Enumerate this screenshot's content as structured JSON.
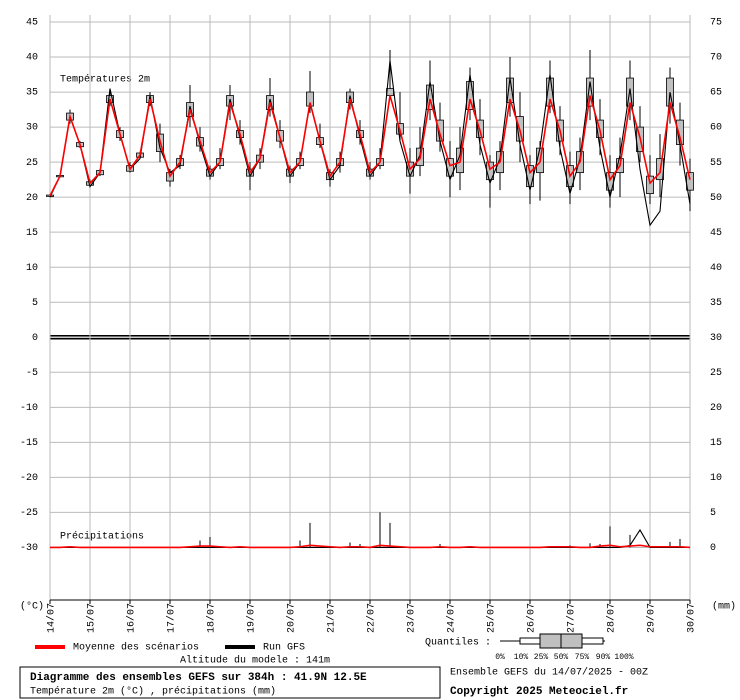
{
  "chart_data": {
    "type": "ensemble",
    "title": "Diagramme des ensembles GEFS sur 384h : 41.9N 12.5E",
    "subtitle": "Température 2m (°C) , précipitations (mm)",
    "source": "Ensemble GEFS du 14/07/2025 - 00Z",
    "copyright": "Copyright 2025 Meteociel.fr",
    "altitude": "Altitude du modele : 141m",
    "panel_labels": [
      "Températures 2m",
      "Précipitations"
    ],
    "ylabel": "(°C)",
    "y2label": "(mm)",
    "quantiles_label": "Quantiles :",
    "quantile_labels": [
      "0%",
      "10%",
      "25%",
      "50%",
      "75%",
      "90%",
      "100%"
    ],
    "grid": true,
    "xlim": [
      0,
      384
    ],
    "xticks": [
      {
        "value": 0,
        "label": "14/07"
      },
      {
        "value": 24,
        "label": "15/07"
      },
      {
        "value": 48,
        "label": "16/07"
      },
      {
        "value": 72,
        "label": "17/07"
      },
      {
        "value": 96,
        "label": "18/07"
      },
      {
        "value": 120,
        "label": "19/07"
      },
      {
        "value": 144,
        "label": "20/07"
      },
      {
        "value": 168,
        "label": "21/07"
      },
      {
        "value": 192,
        "label": "22/07"
      },
      {
        "value": 216,
        "label": "23/07"
      },
      {
        "value": 240,
        "label": "24/07"
      },
      {
        "value": 264,
        "label": "25/07"
      },
      {
        "value": 288,
        "label": "26/07"
      },
      {
        "value": 312,
        "label": "27/07"
      },
      {
        "value": 336,
        "label": "28/07"
      },
      {
        "value": 360,
        "label": "29/07"
      },
      {
        "value": 384,
        "label": "30/07"
      }
    ],
    "ylim": [
      -37.5,
      46
    ],
    "yticks": [
      45,
      40,
      35,
      30,
      25,
      20,
      15,
      10,
      5,
      0,
      -5,
      -10,
      -15,
      -20,
      -25,
      -30
    ],
    "y2lim": [
      -7.5,
      76
    ],
    "y2ticks": [
      75,
      70,
      65,
      60,
      55,
      50,
      45,
      40,
      35,
      30,
      25,
      20,
      15,
      10,
      5,
      0
    ],
    "x": [
      0,
      6,
      12,
      18,
      24,
      30,
      36,
      42,
      48,
      54,
      60,
      66,
      72,
      78,
      84,
      90,
      96,
      102,
      108,
      114,
      120,
      126,
      132,
      138,
      144,
      150,
      156,
      162,
      168,
      174,
      180,
      186,
      192,
      198,
      204,
      210,
      216,
      222,
      228,
      234,
      240,
      246,
      252,
      258,
      264,
      270,
      276,
      282,
      288,
      294,
      300,
      306,
      312,
      318,
      324,
      330,
      336,
      342,
      348,
      354,
      360,
      366,
      372,
      378,
      384
    ],
    "ensemble": {
      "color": "#c0c0c0",
      "low": [
        20,
        22.8,
        30.5,
        27,
        21.5,
        23,
        33,
        28,
        23.5,
        25.5,
        33,
        25,
        21.5,
        24,
        30,
        26.5,
        22.5,
        24,
        31,
        27.5,
        21,
        24,
        31.5,
        27,
        22,
        24,
        32,
        27,
        21.5,
        23.5,
        32.5,
        27.5,
        22.5,
        24,
        34,
        28,
        20.5,
        23,
        31,
        26.5,
        20,
        21,
        31,
        26,
        18.5,
        21,
        31.5,
        25,
        19,
        19.5,
        32,
        26,
        19,
        21,
        31,
        26,
        18.5,
        20,
        31,
        25,
        19,
        20,
        30.5,
        24.5,
        18
      ],
      "q25": [
        20.1,
        22.9,
        31,
        27.2,
        21.7,
        23.2,
        33.5,
        28.5,
        23.7,
        25.7,
        33.5,
        26.5,
        22.3,
        24.5,
        31.5,
        27.3,
        23,
        24.5,
        33,
        28.5,
        23,
        25,
        32.5,
        28,
        23,
        24.5,
        33,
        27.5,
        22.5,
        24.5,
        33.5,
        28.5,
        23,
        24.5,
        34.5,
        29,
        23,
        24.5,
        32.5,
        28,
        23,
        23.5,
        32.5,
        28.5,
        22.5,
        23.5,
        33.5,
        28,
        21.5,
        23.5,
        33,
        28,
        21.5,
        23.5,
        33,
        28.5,
        21,
        23.5,
        33,
        26.5,
        20.5,
        22.5,
        33,
        27.5,
        21
      ],
      "q75": [
        20.3,
        23.1,
        32,
        27.8,
        22.2,
        23.8,
        34.5,
        29.5,
        24.5,
        26.3,
        34.5,
        29,
        23.5,
        25.5,
        33.5,
        28.5,
        24,
        25.5,
        34.5,
        29.5,
        24,
        26,
        34.5,
        29.5,
        24,
        25.5,
        35,
        28.5,
        23.5,
        25.5,
        35,
        29.5,
        24,
        25.5,
        35.5,
        30.5,
        25,
        27,
        36,
        31,
        25.5,
        27,
        36.5,
        31,
        25,
        26.5,
        37,
        31.5,
        24.5,
        27,
        37,
        31,
        24.5,
        26.5,
        37,
        31,
        23.5,
        25.5,
        37,
        30,
        23,
        25.5,
        37,
        31,
        23.5
      ],
      "high": [
        20.4,
        23.2,
        32.5,
        28,
        22.5,
        24,
        35.5,
        30,
        25,
        26.5,
        35,
        30.5,
        24,
        26,
        36,
        30,
        24.5,
        27,
        36,
        31,
        25,
        27,
        37,
        31,
        24.5,
        26.5,
        38,
        30.5,
        24,
        26.5,
        35.5,
        31,
        25,
        27,
        41,
        35,
        27,
        30,
        39.5,
        33.5,
        28,
        30,
        38.5,
        34,
        26,
        28,
        40,
        35,
        26,
        28,
        39.5,
        33,
        26.5,
        28.5,
        41,
        34,
        26,
        28.5,
        39.5,
        33,
        26,
        29,
        38.5,
        33.5,
        25.5
      ],
      "precip_high": [
        0,
        0,
        0,
        0,
        0,
        0,
        0,
        0,
        0,
        0,
        0,
        0,
        0,
        0,
        0,
        1,
        1.5,
        0,
        0,
        0,
        0,
        0,
        0,
        0,
        0,
        1,
        3.5,
        0,
        0,
        0,
        0.7,
        0.5,
        0,
        5,
        3.5,
        0,
        0,
        0,
        0,
        0.5,
        0,
        0,
        0,
        0,
        0,
        0,
        0,
        0,
        0,
        0,
        0,
        0,
        0.3,
        0,
        0.6,
        0.5,
        3,
        0,
        1.8,
        0,
        0,
        0,
        0.8,
        1.2,
        0
      ]
    },
    "series": [
      {
        "name": "Run GFS",
        "color": "#000000",
        "values": [
          20,
          23,
          31.5,
          27.5,
          21.5,
          23.5,
          35.5,
          29,
          24,
          25.5,
          34.5,
          27,
          23.5,
          24.5,
          33,
          27.5,
          23,
          25,
          34,
          28.5,
          23,
          25.5,
          34,
          28.5,
          23,
          25,
          33.5,
          28,
          22.5,
          24.5,
          34.5,
          28.5,
          23,
          25,
          39.5,
          28,
          23,
          26,
          36.5,
          28,
          22.5,
          26,
          37.5,
          27.5,
          22,
          25.5,
          37,
          27.5,
          21,
          27,
          37.5,
          27,
          20.5,
          25.5,
          36.5,
          27,
          20,
          26,
          35.5,
          24,
          16,
          18,
          35,
          27.5,
          19
        ],
        "precip": [
          0,
          0,
          0,
          0,
          0,
          0,
          0,
          0,
          0,
          0,
          0,
          0,
          0,
          0,
          0,
          0,
          0,
          0,
          0,
          0,
          0,
          0,
          0,
          0,
          0,
          0,
          0,
          0,
          0,
          0,
          0,
          0,
          0,
          0,
          0,
          0,
          0,
          0,
          0,
          0,
          0,
          0,
          0,
          0,
          0,
          0,
          0,
          0,
          0,
          0,
          0,
          0,
          0,
          0,
          0,
          0,
          0,
          0,
          0.3,
          2.5,
          0,
          0,
          0,
          0,
          0
        ]
      },
      {
        "name": "Moyenne des scénarios",
        "color": "#ff0000",
        "values": [
          20.2,
          23,
          31.5,
          27.5,
          22,
          23.5,
          34,
          29,
          24,
          26,
          34,
          28,
          23,
          25,
          32.5,
          28,
          23.5,
          25,
          33.5,
          29,
          23.5,
          25.5,
          33.5,
          28.5,
          23.5,
          25,
          33.5,
          28,
          23,
          25,
          34,
          29,
          23.5,
          25,
          34.5,
          29.5,
          24,
          25.5,
          34,
          29,
          24.5,
          25,
          34,
          29.5,
          24,
          25,
          34,
          29.5,
          23.5,
          25,
          34,
          29.5,
          23,
          25,
          34.5,
          29.5,
          22.5,
          24.5,
          33.5,
          28.5,
          22,
          23.5,
          33.5,
          28.5,
          22.5
        ],
        "precip": [
          0,
          0,
          0.1,
          0,
          0,
          0,
          0,
          0,
          0,
          0,
          0,
          0,
          0,
          0,
          0.1,
          0.2,
          0.2,
          0.1,
          0,
          0.1,
          0,
          0,
          0,
          0,
          0,
          0.1,
          0.3,
          0.2,
          0.1,
          0,
          0.1,
          0.1,
          0,
          0.3,
          0.2,
          0.1,
          0,
          0,
          0,
          0.1,
          0,
          0,
          0.1,
          0,
          0,
          0,
          0,
          0,
          0,
          0,
          0.1,
          0.1,
          0.1,
          0,
          0,
          0.2,
          0.3,
          0.1,
          0.2,
          0.3,
          0.1,
          0.1,
          0.1,
          0.1,
          0
        ]
      }
    ]
  }
}
